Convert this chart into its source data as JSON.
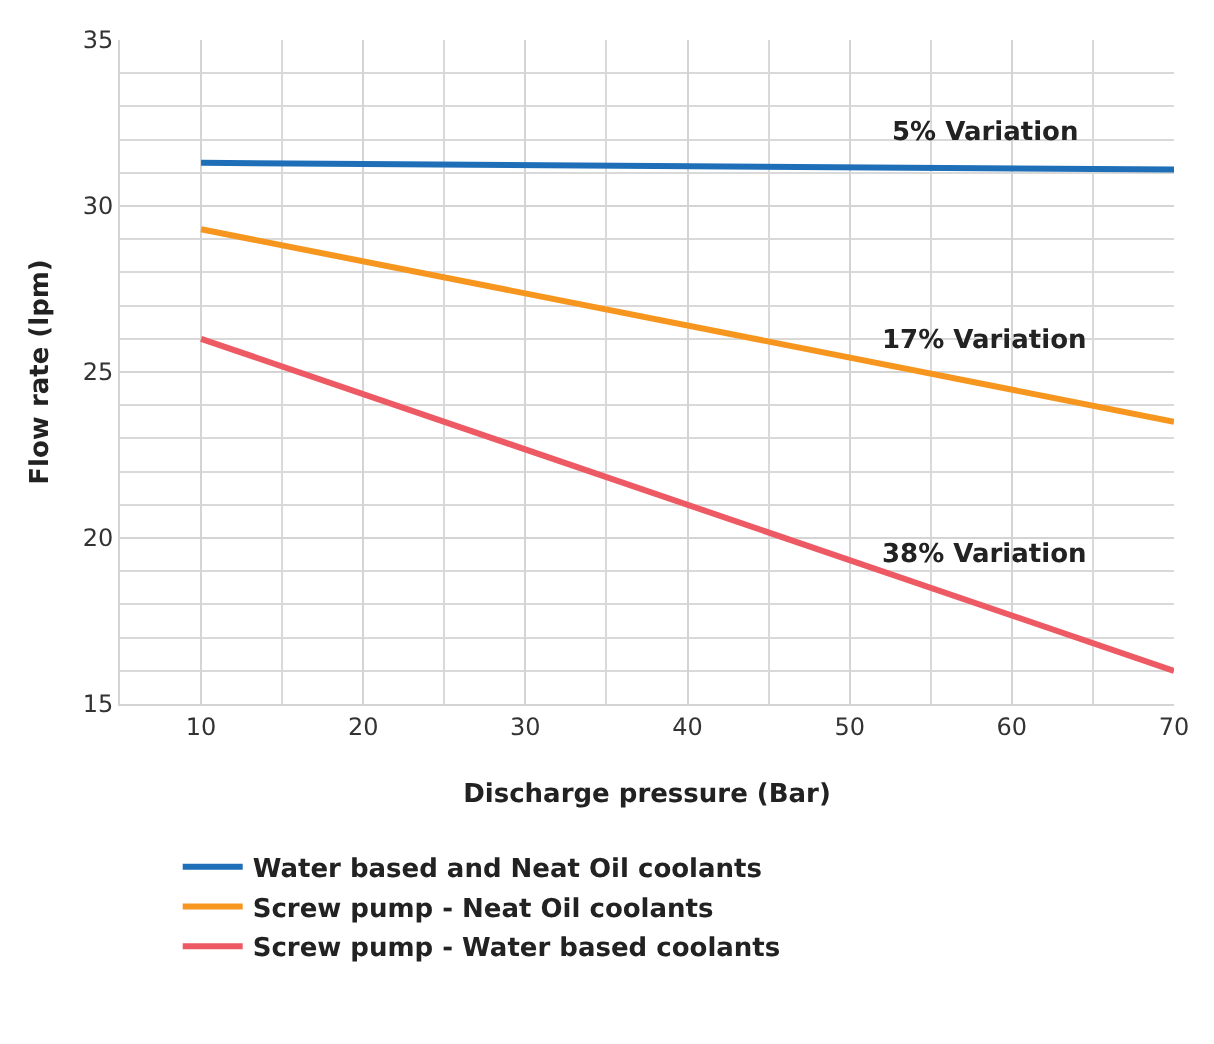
{
  "chart_data": {
    "type": "line",
    "xlabel": "Discharge pressure (Bar)",
    "ylabel": "Flow rate (lpm)",
    "x": [
      10,
      70
    ],
    "series": [
      {
        "name": "Water based and Neat Oil coolants",
        "color": "#1f6fb8",
        "values": [
          31.3,
          31.1
        ]
      },
      {
        "name": "Screw pump - Neat Oil coolants",
        "color": "#f7961e",
        "values": [
          29.3,
          23.5
        ]
      },
      {
        "name": "Screw pump - Water based coolants",
        "color": "#ee5a64",
        "values": [
          26,
          16
        ]
      }
    ],
    "xlim": [
      5,
      70
    ],
    "xticks": [
      10,
      20,
      30,
      40,
      50,
      60,
      70
    ],
    "ylim": [
      15,
      35
    ],
    "yticks": [
      15,
      20,
      25,
      30,
      35
    ],
    "annotations": [
      "5% Variation",
      "17% Variation",
      "38% Variation"
    ],
    "grid": true,
    "legend": "bottom",
    "marker": "none",
    "line_style": "solid"
  }
}
